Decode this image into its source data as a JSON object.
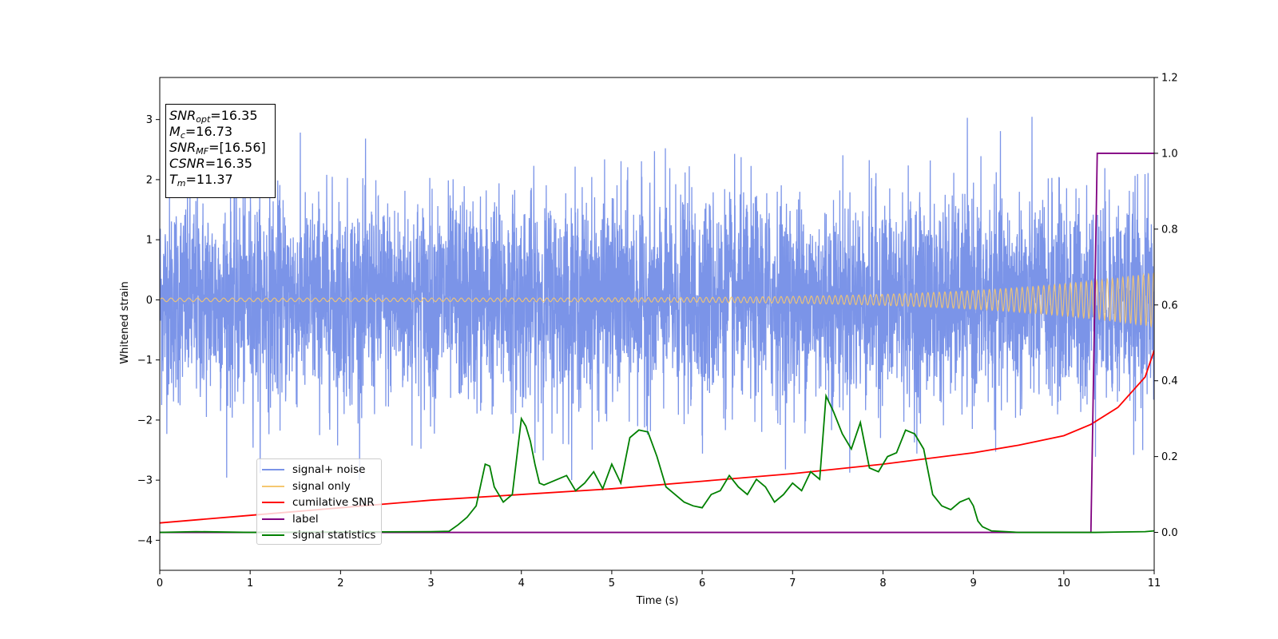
{
  "chart_data": {
    "type": "line",
    "xlabel": "Time (s)",
    "ylabel": "Whitened strain",
    "xlim": [
      0,
      11
    ],
    "ylim": [
      -4.5,
      3.7
    ],
    "y2lim": [
      -0.1,
      1.2
    ],
    "xticks": [
      "0",
      "1",
      "2",
      "3",
      "4",
      "5",
      "6",
      "7",
      "8",
      "9",
      "10",
      "11"
    ],
    "yticks": [
      "3",
      "2",
      "1",
      "0",
      "−1",
      "−2",
      "−3",
      "−4"
    ],
    "y2ticks": [
      "1.2",
      "1.0",
      "0.8",
      "0.6",
      "0.4",
      "0.2",
      "0.0"
    ],
    "info_box": {
      "snr_opt": {
        "sym": "SNR",
        "sub": "opt",
        "value": "=16.35"
      },
      "mc": {
        "sym": "M",
        "sub": "c",
        "value": "=16.73"
      },
      "snr_mf": {
        "sym": "SNR",
        "sub": "MF",
        "value": "=[16.56]"
      },
      "csnr": {
        "sym": "CSNR",
        "value": "=16.35"
      },
      "tm": {
        "sym": "T",
        "sub": "m",
        "value": "=11.37"
      }
    },
    "legend": {
      "placement": "lower-left",
      "items": [
        {
          "label": "signal+ noise",
          "color": "#7b94e8"
        },
        {
          "label": "signal only",
          "color": "#f5c770"
        },
        {
          "label": "cumilative SNR",
          "color": "#ff0000"
        },
        {
          "label": "label",
          "color": "#800080"
        },
        {
          "label": "signal statistics",
          "color": "#008000"
        }
      ]
    },
    "series": [
      {
        "name": "cumilative SNR",
        "axis": "right",
        "x": [
          0,
          1,
          2,
          3,
          4,
          5,
          6,
          7,
          8,
          9,
          9.5,
          10,
          10.3,
          10.6,
          10.9,
          11
        ],
        "values": [
          0.025,
          0.045,
          0.065,
          0.085,
          0.1,
          0.115,
          0.135,
          0.155,
          0.18,
          0.21,
          0.23,
          0.255,
          0.285,
          0.33,
          0.41,
          0.48
        ]
      },
      {
        "name": "label",
        "axis": "right",
        "x": [
          0,
          10.3,
          10.37,
          11
        ],
        "values": [
          0,
          0,
          1,
          1
        ]
      },
      {
        "name": "signal statistics",
        "axis": "right",
        "x": [
          0,
          0.4,
          1,
          2,
          3,
          3.2,
          3.3,
          3.4,
          3.5,
          3.6,
          3.65,
          3.7,
          3.8,
          3.9,
          4.0,
          4.05,
          4.1,
          4.15,
          4.2,
          4.25,
          4.3,
          4.4,
          4.5,
          4.6,
          4.7,
          4.8,
          4.9,
          5.0,
          5.1,
          5.2,
          5.3,
          5.4,
          5.5,
          5.6,
          5.7,
          5.8,
          5.9,
          6.0,
          6.1,
          6.2,
          6.3,
          6.4,
          6.5,
          6.6,
          6.7,
          6.8,
          6.9,
          7.0,
          7.1,
          7.2,
          7.3,
          7.37,
          7.45,
          7.55,
          7.65,
          7.75,
          7.85,
          7.95,
          8.05,
          8.15,
          8.25,
          8.35,
          8.45,
          8.55,
          8.65,
          8.75,
          8.85,
          8.95,
          9.0,
          9.05,
          9.1,
          9.2,
          9.5,
          10,
          10.35,
          10.9,
          11
        ],
        "values": [
          0,
          0.002,
          0,
          0.001,
          0.002,
          0.003,
          0.02,
          0.04,
          0.07,
          0.18,
          0.175,
          0.12,
          0.08,
          0.1,
          0.3,
          0.28,
          0.24,
          0.18,
          0.13,
          0.125,
          0.13,
          0.14,
          0.15,
          0.11,
          0.13,
          0.16,
          0.115,
          0.18,
          0.13,
          0.25,
          0.27,
          0.265,
          0.2,
          0.12,
          0.1,
          0.08,
          0.07,
          0.065,
          0.1,
          0.11,
          0.15,
          0.12,
          0.1,
          0.14,
          0.12,
          0.08,
          0.1,
          0.13,
          0.11,
          0.16,
          0.14,
          0.36,
          0.32,
          0.26,
          0.22,
          0.29,
          0.17,
          0.16,
          0.2,
          0.21,
          0.27,
          0.26,
          0.22,
          0.1,
          0.07,
          0.06,
          0.08,
          0.09,
          0.07,
          0.03,
          0.015,
          0.004,
          0,
          0,
          0,
          0.002,
          0.004
        ]
      }
    ]
  }
}
